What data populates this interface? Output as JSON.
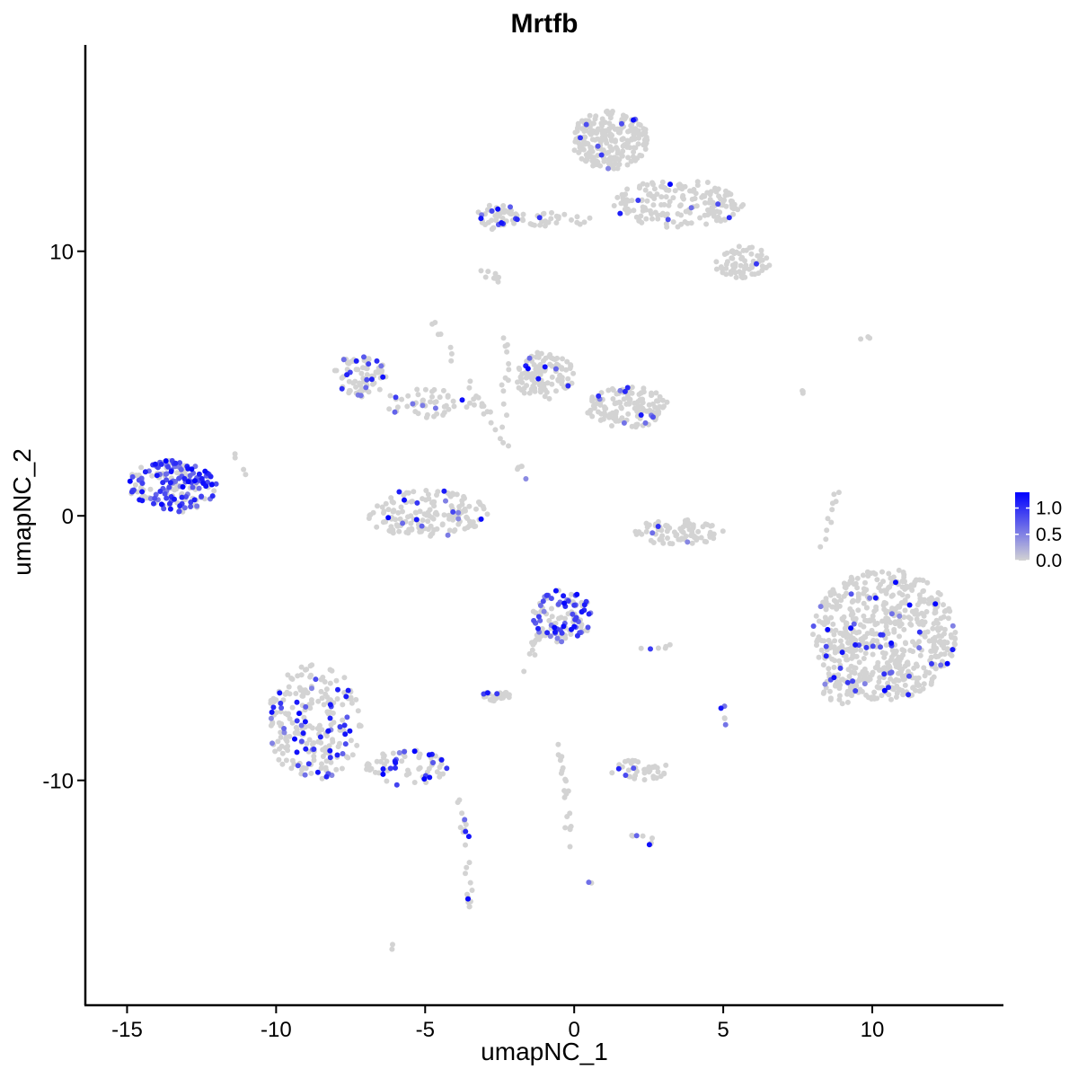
{
  "chart_data": {
    "type": "scatter",
    "title": "Mrtfb",
    "xlabel": "umapNC_1",
    "ylabel": "umapNC_2",
    "xlim": [
      -16.4,
      14.4
    ],
    "ylim": [
      -18.5,
      17.8
    ],
    "xticks": [
      -15,
      -10,
      -5,
      0,
      5,
      10
    ],
    "xtick_labels": [
      "-15",
      "-10",
      "-5",
      "0",
      "5",
      "10"
    ],
    "yticks": [
      -10,
      0,
      10
    ],
    "ytick_labels": [
      "-10",
      "0",
      "10"
    ],
    "grid": false,
    "legend": {
      "placement": "right",
      "type": "colorbar",
      "min": 0.0,
      "max": 1.3,
      "ticks": [
        0.0,
        0.5,
        1.0
      ],
      "tick_labels": [
        "0.0",
        "0.5",
        "1.0"
      ]
    },
    "colors": {
      "low": "#d3d3d3",
      "high": "#0000ff"
    },
    "clusters": [
      {
        "cx": 1.2,
        "cy": 14.2,
        "rx": 1.3,
        "ry": 1.1,
        "n": 230,
        "expr_frac": 0.05
      },
      {
        "cx": 3.5,
        "cy": 11.8,
        "rx": 2.2,
        "ry": 0.9,
        "n": 170,
        "expr_frac": 0.06
      },
      {
        "cx": 5.6,
        "cy": 9.6,
        "rx": 1.0,
        "ry": 0.6,
        "n": 70,
        "expr_frac": 0.04
      },
      {
        "cx": -2.6,
        "cy": 11.3,
        "rx": 0.7,
        "ry": 0.5,
        "n": 45,
        "expr_frac": 0.2
      },
      {
        "cx": -0.7,
        "cy": 11.2,
        "rx": 1.4,
        "ry": 0.3,
        "n": 30,
        "expr_frac": 0.15
      },
      {
        "cx": -7.2,
        "cy": 5.3,
        "rx": 0.9,
        "ry": 0.8,
        "n": 80,
        "expr_frac": 0.15
      },
      {
        "cx": -4.8,
        "cy": 4.3,
        "rx": 1.6,
        "ry": 0.6,
        "n": 50,
        "expr_frac": 0.1
      },
      {
        "cx": -1.0,
        "cy": 5.3,
        "rx": 1.0,
        "ry": 0.9,
        "n": 110,
        "expr_frac": 0.08
      },
      {
        "cx": 1.8,
        "cy": 4.1,
        "rx": 1.4,
        "ry": 0.8,
        "n": 140,
        "expr_frac": 0.05
      },
      {
        "cx": -13.5,
        "cy": 1.1,
        "rx": 1.5,
        "ry": 1.0,
        "n": 190,
        "expr_frac": 0.55
      },
      {
        "cx": -5.0,
        "cy": 0.1,
        "rx": 2.1,
        "ry": 0.9,
        "n": 160,
        "expr_frac": 0.12
      },
      {
        "cx": 3.5,
        "cy": -0.6,
        "rx": 1.5,
        "ry": 0.5,
        "n": 80,
        "expr_frac": 0.02
      },
      {
        "cx": -0.4,
        "cy": -3.8,
        "rx": 1.0,
        "ry": 1.0,
        "n": 110,
        "expr_frac": 0.55
      },
      {
        "cx": 10.4,
        "cy": -4.5,
        "rx": 2.4,
        "ry": 2.5,
        "n": 650,
        "expr_frac": 0.06
      },
      {
        "cx": -8.7,
        "cy": -7.8,
        "rx": 1.6,
        "ry": 2.2,
        "n": 240,
        "expr_frac": 0.2
      },
      {
        "cx": -5.6,
        "cy": -9.5,
        "rx": 1.4,
        "ry": 0.7,
        "n": 70,
        "expr_frac": 0.2
      },
      {
        "cx": -2.6,
        "cy": -6.8,
        "rx": 0.5,
        "ry": 0.2,
        "n": 25,
        "expr_frac": 0.15
      },
      {
        "cx": 2.2,
        "cy": -9.6,
        "rx": 1.0,
        "ry": 0.4,
        "n": 40,
        "expr_frac": 0.1
      },
      {
        "cx": 9.0,
        "cy": -6.6,
        "rx": 0.7,
        "ry": 0.5,
        "n": 30,
        "expr_frac": 0.1
      }
    ],
    "trails": [
      {
        "points": [
          [
            -3.8,
            -10.5
          ],
          [
            -3.6,
            -13.0
          ],
          [
            -3.5,
            -15.0
          ]
        ],
        "n": 25,
        "expr_frac": 0.1
      },
      {
        "points": [
          [
            -1.3,
            0.8
          ],
          [
            -2.2,
            2.5
          ],
          [
            -3.3,
            4.5
          ],
          [
            -4.8,
            7.5
          ]
        ],
        "n": 25,
        "expr_frac": 0.05
      },
      {
        "points": [
          [
            -2.4,
            2.5
          ],
          [
            -2.2,
            7.0
          ]
        ],
        "n": 15,
        "expr_frac": 0.0
      },
      {
        "points": [
          [
            -2.6,
            8.9
          ],
          [
            -3.0,
            9.2
          ]
        ],
        "n": 8,
        "expr_frac": 0.0
      },
      {
        "points": [
          [
            -1.7,
            -5.9
          ],
          [
            -1.2,
            -4.5
          ]
        ],
        "n": 12,
        "expr_frac": 0.0
      },
      {
        "points": [
          [
            -0.6,
            -8.5
          ],
          [
            -0.2,
            -10.5
          ],
          [
            -0.1,
            -12.5
          ]
        ],
        "n": 22,
        "expr_frac": 0.0
      },
      {
        "points": [
          [
            2.0,
            -12.0
          ],
          [
            2.7,
            -12.4
          ]
        ],
        "n": 8,
        "expr_frac": 0.3
      },
      {
        "points": [
          [
            2.5,
            -5.0
          ],
          [
            3.3,
            -5.0
          ]
        ],
        "n": 6,
        "expr_frac": 0.3
      },
      {
        "points": [
          [
            5.0,
            -7.3
          ],
          [
            5.1,
            -7.9
          ]
        ],
        "n": 5,
        "expr_frac": 0.3
      },
      {
        "points": [
          [
            8.2,
            -1.7
          ],
          [
            8.8,
            1.0
          ]
        ],
        "n": 10,
        "expr_frac": 0.0
      },
      {
        "points": [
          [
            7.5,
            4.8
          ],
          [
            7.9,
            4.5
          ]
        ],
        "n": 3,
        "expr_frac": 0.0
      },
      {
        "points": [
          [
            9.6,
            6.7
          ],
          [
            9.9,
            6.8
          ]
        ],
        "n": 3,
        "expr_frac": 0.0
      },
      {
        "points": [
          [
            -11.6,
            2.7
          ],
          [
            -11.0,
            1.4
          ]
        ],
        "n": 4,
        "expr_frac": 0.0
      },
      {
        "points": [
          [
            -6.0,
            -16.2
          ],
          [
            -6.1,
            -16.3
          ]
        ],
        "n": 2,
        "expr_frac": 0.0
      },
      {
        "points": [
          [
            0.5,
            -13.8
          ],
          [
            0.6,
            -13.9
          ]
        ],
        "n": 2,
        "expr_frac": 0.5
      }
    ]
  }
}
